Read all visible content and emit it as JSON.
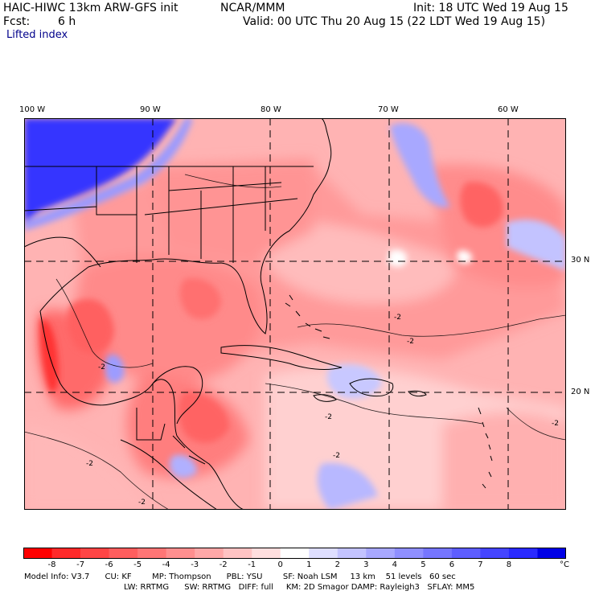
{
  "header": {
    "model_title": "HAIC-HIWC 13km ARW-GFS init",
    "org": "NCAR/MMM",
    "init": "Init: 18 UTC Wed 19 Aug 15",
    "fcst_label": "Fcst:",
    "fcst_value": "6 h",
    "valid": "Valid: 00 UTC Thu 20 Aug 15 (22 LDT Wed 19 Aug 15)",
    "field": "Lifted index"
  },
  "map": {
    "lon_labels": [
      "100 W",
      "90 W",
      "80 W",
      "70 W",
      "60 W"
    ],
    "lat_labels": [
      "30 N",
      "20 N"
    ],
    "contour_label": "-2"
  },
  "colorbar": {
    "labels": [
      "-8",
      "-7",
      "-6",
      "-5",
      "-4",
      "-3",
      "-2",
      "-1",
      "0",
      "1",
      "2",
      "3",
      "4",
      "5",
      "6",
      "7",
      "8"
    ],
    "unit": "°C",
    "colors": [
      "#ff0000",
      "#ff2a2a",
      "#ff4545",
      "#ff5e5e",
      "#ff7676",
      "#ff8f8f",
      "#ffa8a8",
      "#ffc3c3",
      "#ffdede",
      "#ffffff",
      "#dedeff",
      "#c3c3ff",
      "#a8a8ff",
      "#8f8fff",
      "#7676ff",
      "#5e5eff",
      "#4545ff",
      "#2a2aff",
      "#0000e6"
    ]
  },
  "footer": {
    "line1": "Model Info: V3.7      CU: KF        MP: Thompson      PBL: YSU        SF: Noah LSM     13 km    51 levels   60 sec",
    "line2": "LW: RRTMG      SW: RRTMG   DIFF: full     KM: 2D Smagor DAMP: Rayleigh3   SFLAY: MM5"
  }
}
